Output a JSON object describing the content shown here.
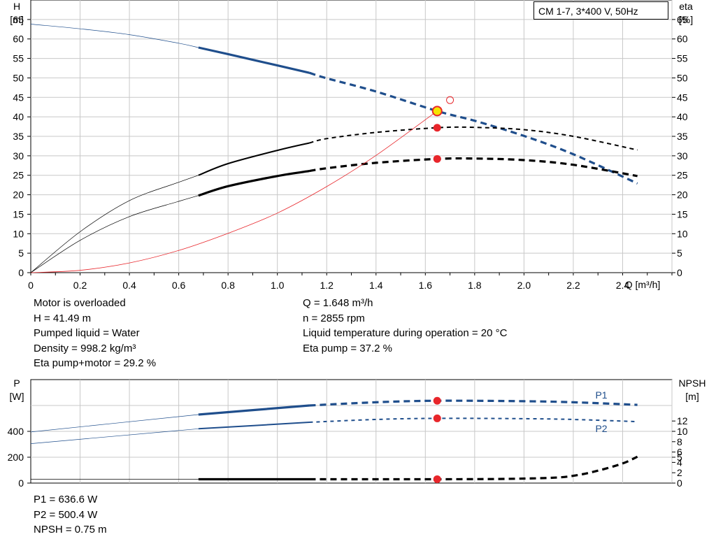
{
  "pump_title": "CM 1-7, 3*400 V, 50Hz",
  "info_left": [
    "Motor is overloaded",
    "H = 41.49 m",
    "Pumped liquid = Water",
    "Density = 998.2 kg/m³",
    "Eta pump+motor = 29.2 %"
  ],
  "info_right": [
    "Q = 1.648 m³/h",
    "n = 2855 rpm",
    "Liquid temperature during operation = 20 °C",
    "Eta pump = 37.2 %"
  ],
  "info_bottom": [
    "P1 = 636.6 W",
    "P2 = 500.4 W",
    "NPSH = 0.75 m"
  ],
  "colors": {
    "blue": "#1f4e8c",
    "black": "#000000",
    "red": "#e8262b",
    "grid": "#c8c8c8",
    "yellow": "#f5e400"
  },
  "chart_data": [
    {
      "type": "line",
      "name": "top",
      "left_axis": {
        "label_line1": "H",
        "label_line2": "[m]",
        "ticks": [
          0,
          5,
          10,
          15,
          20,
          25,
          30,
          35,
          40,
          45,
          50,
          55,
          60,
          65
        ],
        "range": [
          0,
          70
        ]
      },
      "right_axis": {
        "label_line1": "eta",
        "label_line2": "[%]",
        "ticks": [
          0,
          5,
          10,
          15,
          20,
          25,
          30,
          35,
          40,
          45,
          50,
          55,
          60,
          65
        ],
        "range": [
          0,
          70
        ]
      },
      "x_axis": {
        "label": "Q [m³/h]",
        "ticks": [
          0,
          0.2,
          0.4,
          0.6,
          0.8,
          1.0,
          1.2,
          1.4,
          1.6,
          1.8,
          2.0,
          2.2,
          2.4
        ],
        "tick_labels": [
          "0",
          "0.2",
          "0.4",
          "0.6",
          "0.8",
          "1.0",
          "1.2",
          "1.4",
          "1.6",
          "1.8",
          "2.0",
          "2.2",
          "2.4"
        ],
        "range": [
          0,
          2.6
        ]
      },
      "grid": true,
      "series": [
        {
          "id": "H",
          "color": "blue",
          "x": [
            0,
            0.2,
            0.4,
            0.6,
            0.68,
            0.8,
            1.0,
            1.13,
            1.2,
            1.4,
            1.648,
            1.8,
            2.0,
            2.2,
            2.46
          ],
          "y": [
            63.8,
            62.6,
            61.1,
            58.9,
            57.8,
            56.1,
            53.2,
            51.3,
            49.9,
            46.5,
            41.49,
            39.0,
            35.1,
            30.4,
            22.9
          ],
          "thin_to": 0.68,
          "solid_to": 1.13
        },
        {
          "id": "eta_pump",
          "color": "black",
          "x": [
            0,
            0.2,
            0.4,
            0.6,
            0.68,
            0.8,
            1.0,
            1.13,
            1.2,
            1.4,
            1.648,
            1.8,
            2.0,
            2.2,
            2.46
          ],
          "y": [
            0,
            10.5,
            18.5,
            23.2,
            25.0,
            28.0,
            31.4,
            33.3,
            34.4,
            36.0,
            37.2,
            37.3,
            36.7,
            35.0,
            31.5
          ],
          "thin_to": 0.68,
          "solid_to": 1.13
        },
        {
          "id": "eta_total",
          "color": "black",
          "x": [
            0,
            0.2,
            0.4,
            0.6,
            0.68,
            0.8,
            1.0,
            1.13,
            1.2,
            1.4,
            1.648,
            1.8,
            2.0,
            2.2,
            2.46
          ],
          "y": [
            0,
            8.3,
            14.4,
            18.3,
            19.8,
            22.2,
            24.8,
            26.1,
            26.8,
            28.2,
            29.2,
            29.3,
            28.9,
            27.7,
            24.8
          ],
          "thin_to": 0.68,
          "solid_to": 1.13
        },
        {
          "id": "system",
          "color": "red",
          "x": [
            0,
            0.2,
            0.4,
            0.6,
            0.8,
            1.0,
            1.2,
            1.4,
            1.648
          ],
          "y": [
            0,
            0.6,
            2.5,
            5.7,
            10.1,
            15.3,
            22.1,
            30.1,
            41.49
          ]
        }
      ],
      "operating_points": [
        {
          "series": "H",
          "x": 1.648,
          "y": 41.49,
          "marker": "yellow"
        },
        {
          "series": "eta_pump",
          "x": 1.648,
          "y": 37.2,
          "marker": "red"
        },
        {
          "series": "eta_total",
          "x": 1.648,
          "y": 29.2,
          "marker": "red"
        },
        {
          "series": "H",
          "x": 1.7,
          "y": 44.3,
          "marker": "red-open"
        }
      ]
    },
    {
      "type": "line",
      "name": "bottom",
      "left_axis": {
        "label_line1": "P",
        "label_line2": "[W]",
        "ticks": [
          0,
          200,
          400
        ],
        "range": [
          0,
          800
        ]
      },
      "right_axis": {
        "label_line1": "NPSH",
        "label_line2": "[m]",
        "ticks": [
          0,
          2,
          4,
          5,
          6,
          8,
          10,
          12
        ],
        "range": [
          0,
          20
        ]
      },
      "x_axis": {
        "range": [
          0,
          2.6
        ]
      },
      "grid": true,
      "series": [
        {
          "id": "P1",
          "label": "P1",
          "color": "blue",
          "axis": "left",
          "x": [
            0,
            0.68,
            1.13,
            1.4,
            1.648,
            2.0,
            2.2,
            2.46
          ],
          "y": [
            395,
            530,
            600,
            625,
            636.6,
            633,
            625,
            605
          ],
          "thin_to": 0.68,
          "solid_to": 1.13
        },
        {
          "id": "P2",
          "label": "P2",
          "color": "blue",
          "axis": "left",
          "x": [
            0,
            0.68,
            1.13,
            1.4,
            1.648,
            2.0,
            2.2,
            2.46
          ],
          "y": [
            305,
            420,
            470,
            492,
            500.4,
            498,
            492,
            475
          ],
          "thin_to": 0.68,
          "solid_to": 1.13
        },
        {
          "id": "NPSH",
          "color": "black",
          "axis": "right",
          "x": [
            0,
            0.68,
            1.13,
            1.4,
            1.648,
            1.9,
            2.1,
            2.2,
            2.3,
            2.4,
            2.46
          ],
          "y": [
            0.75,
            0.75,
            0.75,
            0.75,
            0.75,
            0.8,
            1.0,
            1.4,
            2.4,
            3.8,
            5.1
          ],
          "thin_to": 0.68,
          "solid_to": 1.13
        }
      ],
      "operating_points": [
        {
          "series": "P1",
          "x": 1.648,
          "y": 636.6,
          "marker": "red"
        },
        {
          "series": "P2",
          "x": 1.648,
          "y": 500.4,
          "marker": "red"
        },
        {
          "series": "NPSH",
          "x": 1.648,
          "y": 0.75,
          "marker": "red"
        }
      ]
    }
  ]
}
